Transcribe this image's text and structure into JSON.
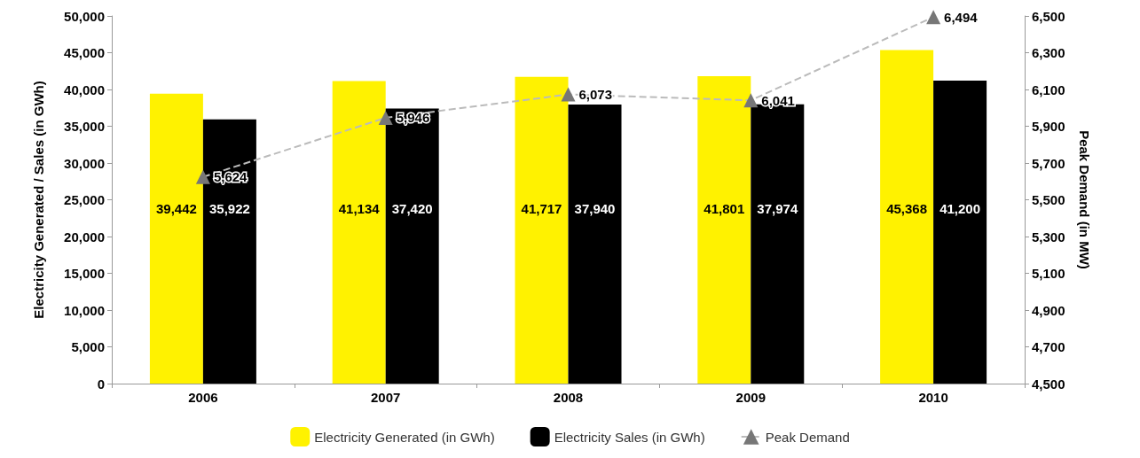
{
  "chart_data": {
    "type": "bar",
    "categories": [
      "2006",
      "2007",
      "2008",
      "2009",
      "2010"
    ],
    "ylabel": "Electricity Generated / Sales (in GWh)",
    "y2label": "Peak Demand (in MW)",
    "series": [
      {
        "name": "Electricity Generated (in GWh)",
        "color": "#fff200",
        "values": [
          39442,
          41134,
          41717,
          41801,
          45368
        ],
        "value_labels": [
          "39,442",
          "41,134",
          "41,717",
          "41,801",
          "45,368"
        ]
      },
      {
        "name": "Electricity Sales (in GWh)",
        "color": "#000000",
        "values": [
          35922,
          37420,
          37940,
          37974,
          41200
        ],
        "value_labels": [
          "35,922",
          "37,420",
          "37,940",
          "37,974",
          "41,200"
        ]
      },
      {
        "name": "Peak Demand",
        "type": "line",
        "axis": "y2",
        "color": "#777777",
        "line_style": "dashed",
        "marker": "triangle",
        "values": [
          5624,
          5946,
          6073,
          6041,
          6494
        ],
        "value_labels": [
          "5,624",
          "5,946",
          "6,073",
          "6,041",
          "6,494"
        ]
      }
    ],
    "ylim": [
      0,
      50000
    ],
    "yticks": [
      0,
      {
        "value": 5000,
        "label": "5,000"
      },
      {
        "value": 10000,
        "label": "10,000"
      },
      {
        "value": 15000,
        "label": "15,000"
      },
      {
        "value": 20000,
        "label": "20,000"
      },
      {
        "value": 25000,
        "label": "25,000"
      },
      {
        "value": 30000,
        "label": "30,000"
      },
      {
        "value": 35000,
        "label": "35,000"
      },
      {
        "value": 40000,
        "label": "40,000"
      },
      {
        "value": 45000,
        "label": "45,000"
      },
      {
        "value": 50000,
        "label": "50,000"
      }
    ],
    "y2lim": [
      4500,
      6500
    ],
    "y2ticks": [
      {
        "value": 4500,
        "label": "4,500"
      },
      {
        "value": 4700,
        "label": "4,700"
      },
      {
        "value": 4900,
        "label": "4,900"
      },
      {
        "value": 5100,
        "label": "5,100"
      },
      {
        "value": 5300,
        "label": "5,300"
      },
      {
        "value": 5500,
        "label": "5,500"
      },
      {
        "value": 5700,
        "label": "5,700"
      },
      {
        "value": 5900,
        "label": "5,900"
      },
      {
        "value": 6100,
        "label": "6,100"
      },
      {
        "value": 6300,
        "label": "6,300"
      },
      {
        "value": 6500,
        "label": "6,500"
      }
    ],
    "legend": "bottom"
  }
}
